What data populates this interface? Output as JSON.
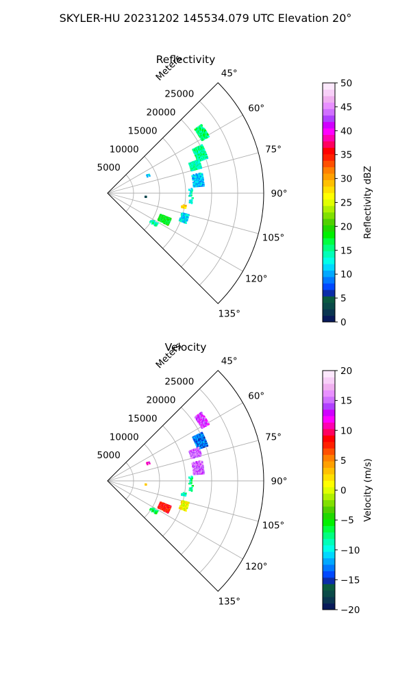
{
  "figure": {
    "title": "SKYLER-HU  20231202  145534.079 UTC Elevation 20°"
  },
  "chart_data": [
    {
      "type": "polar-sector",
      "title": "Reflectivity",
      "radial_axis_label": "Meters",
      "radial_ticks": [
        "5000",
        "10000",
        "15000",
        "20000",
        "25000"
      ],
      "radial_tick_values": [
        5000,
        10000,
        15000,
        20000,
        25000
      ],
      "rmax": 30000,
      "theta_range_deg": [
        45,
        135
      ],
      "angle_ticks": [
        "45°",
        "60°",
        "75°",
        "90°",
        "105°",
        "120°",
        "135°"
      ],
      "angle_tick_values_deg": [
        45,
        60,
        75,
        90,
        105,
        120,
        135
      ],
      "grid": true,
      "colorbar": {
        "label": "Reflectivity dBZ",
        "range": [
          0,
          50
        ],
        "ticks": [
          "0",
          "5",
          "10",
          "15",
          "20",
          "25",
          "30",
          "35",
          "40",
          "45",
          "50"
        ],
        "tick_values": [
          0,
          5,
          10,
          15,
          20,
          25,
          30,
          35,
          40,
          45,
          50
        ],
        "colors": [
          "#081a5a",
          "#0a3550",
          "#0a4a48",
          "#0a5a40",
          "#0b2da8",
          "#0048ff",
          "#0078ff",
          "#00a8ff",
          "#00d8ff",
          "#00ffe8",
          "#00ffb8",
          "#00ff80",
          "#00ff40",
          "#00f000",
          "#20d800",
          "#50d000",
          "#80e000",
          "#b0f000",
          "#e0ff00",
          "#ffff00",
          "#ffe000",
          "#ffc000",
          "#ffa000",
          "#ff8000",
          "#ff5000",
          "#ff2000",
          "#ff0000",
          "#ff0060",
          "#ff00b0",
          "#ff00ff",
          "#d000ff",
          "#b040ff",
          "#d070ff",
          "#e890ff",
          "#f0b0f0",
          "#f8d0f8",
          "#fde8fd"
        ]
      },
      "echo_clusters": [
        {
          "r_m": [
            20800,
            22400
          ],
          "theta_deg": [
            54,
            61
          ],
          "value": 16,
          "density": 0.85
        },
        {
          "r_m": [
            18400,
            20500
          ],
          "theta_deg": [
            63,
            71
          ],
          "value": 15,
          "density": 0.9
        },
        {
          "r_m": [
            16700,
            18700
          ],
          "theta_deg": [
            70,
            75
          ],
          "value": 14,
          "density": 0.75
        },
        {
          "r_m": [
            16600,
            18600
          ],
          "theta_deg": [
            78,
            86
          ],
          "value": 11,
          "density": 0.65
        },
        {
          "r_m": [
            15700,
            16600
          ],
          "theta_deg": [
            87,
            97
          ],
          "value": 13,
          "density": 0.25
        },
        {
          "r_m": [
            14500,
            15400
          ],
          "theta_deg": [
            99,
            101
          ],
          "value": 28,
          "density": 0.8
        },
        {
          "r_m": [
            11000,
            13200
          ],
          "theta_deg": [
            112,
            118
          ],
          "value": 18,
          "density": 0.85
        },
        {
          "r_m": [
            9900,
            11400
          ],
          "theta_deg": [
            121,
            125
          ],
          "value": 14,
          "density": 0.4
        },
        {
          "r_m": [
            14800,
            16200
          ],
          "theta_deg": [
            105,
            111
          ],
          "value": 12,
          "density": 0.6
        },
        {
          "r_m": [
            8300,
            8800
          ],
          "theta_deg": [
            65,
            68
          ],
          "value": 12,
          "density": 0.5
        },
        {
          "r_m": [
            7300,
            7600
          ],
          "theta_deg": [
            95,
            96
          ],
          "value": 2,
          "density": 1.0
        }
      ]
    },
    {
      "type": "polar-sector",
      "title": "Velocity",
      "radial_axis_label": "Meters",
      "radial_ticks": [
        "5000",
        "10000",
        "15000",
        "20000",
        "25000"
      ],
      "radial_tick_values": [
        5000,
        10000,
        15000,
        20000,
        25000
      ],
      "rmax": 30000,
      "theta_range_deg": [
        45,
        135
      ],
      "angle_ticks": [
        "45°",
        "60°",
        "75°",
        "90°",
        "105°",
        "120°",
        "135°"
      ],
      "angle_tick_values_deg": [
        45,
        60,
        75,
        90,
        105,
        120,
        135
      ],
      "grid": true,
      "colorbar": {
        "label": "Velocity (m/s)",
        "range": [
          -20,
          20
        ],
        "ticks": [
          "−20",
          "−15",
          "−10",
          "−5",
          "0",
          "5",
          "10",
          "15",
          "20"
        ],
        "tick_values": [
          -20,
          -15,
          -10,
          -5,
          0,
          5,
          10,
          15,
          20
        ],
        "colors": [
          "#081a5a",
          "#0a3550",
          "#0a4a48",
          "#0a5a40",
          "#0b2da8",
          "#0048ff",
          "#0078ff",
          "#00a8ff",
          "#00d8ff",
          "#00ffe8",
          "#00ffb8",
          "#00ff80",
          "#00ff40",
          "#00f000",
          "#20d800",
          "#50d000",
          "#80e000",
          "#b0f000",
          "#e0ff00",
          "#ffff00",
          "#ffe000",
          "#ffc000",
          "#ffa000",
          "#ff8000",
          "#ff5000",
          "#ff2000",
          "#ff0000",
          "#ff0060",
          "#ff00b0",
          "#ff00ff",
          "#d000ff",
          "#b040ff",
          "#d070ff",
          "#e890ff",
          "#f0b0f0",
          "#f8d0f8",
          "#fde8fd"
        ]
      },
      "echo_clusters": [
        {
          "r_m": [
            20800,
            22400
          ],
          "theta_deg": [
            54,
            61
          ],
          "value": 14,
          "density": 0.85
        },
        {
          "r_m": [
            18400,
            20500
          ],
          "theta_deg": [
            63,
            71
          ],
          "value": -13,
          "density": 0.9
        },
        {
          "r_m": [
            16700,
            18700
          ],
          "theta_deg": [
            70,
            75
          ],
          "value": 15,
          "density": 0.6
        },
        {
          "r_m": [
            16600,
            18600
          ],
          "theta_deg": [
            78,
            86
          ],
          "value": 15,
          "density": 0.65
        },
        {
          "r_m": [
            15700,
            16600
          ],
          "theta_deg": [
            87,
            97
          ],
          "value": -8,
          "density": 0.25
        },
        {
          "r_m": [
            14500,
            15400
          ],
          "theta_deg": [
            99,
            101
          ],
          "value": -9,
          "density": 0.8
        },
        {
          "r_m": [
            11000,
            13200
          ],
          "theta_deg": [
            112,
            118
          ],
          "value": 8,
          "density": 0.85
        },
        {
          "r_m": [
            9900,
            11400
          ],
          "theta_deg": [
            121,
            125
          ],
          "value": -7,
          "density": 0.4
        },
        {
          "r_m": [
            14800,
            16200
          ],
          "theta_deg": [
            105,
            111
          ],
          "value": 1,
          "density": 0.6
        },
        {
          "r_m": [
            8300,
            8800
          ],
          "theta_deg": [
            65,
            68
          ],
          "value": 12,
          "density": 0.5
        },
        {
          "r_m": [
            7300,
            7600
          ],
          "theta_deg": [
            95,
            96
          ],
          "value": 2,
          "density": 1.0
        }
      ]
    }
  ]
}
